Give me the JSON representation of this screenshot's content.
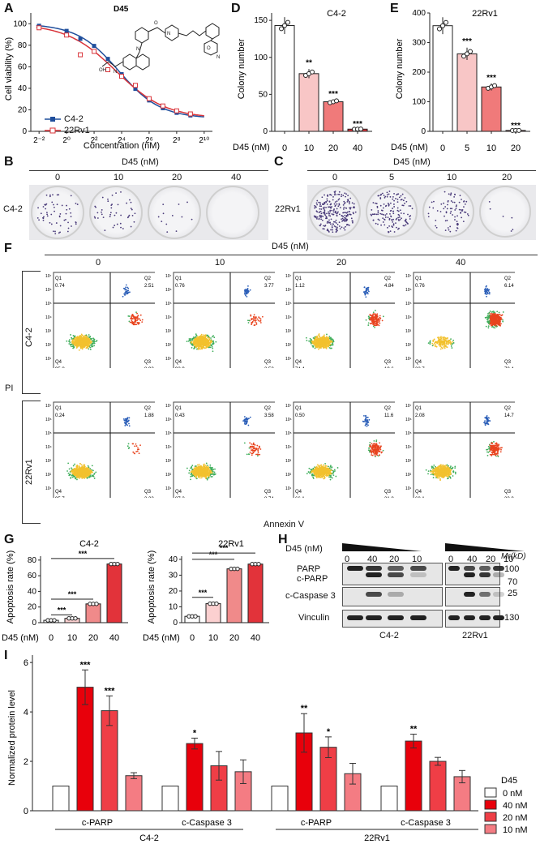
{
  "panels": {
    "A": "A",
    "B": "B",
    "C": "C",
    "D": "D",
    "E": "E",
    "F": "F",
    "G": "G",
    "H": "H",
    "I": "I"
  },
  "panelA": {
    "compound": "D45",
    "ylabel": "Cell viability (%)",
    "xlabel": "Concentration (nM)",
    "yticks": [
      "0",
      "20",
      "40",
      "60",
      "80",
      "100"
    ],
    "xticks": [
      "2⁻²",
      "2⁰",
      "2²",
      "2⁴",
      "2⁶",
      "2⁸",
      "2¹⁰"
    ],
    "legend": [
      "C4-2",
      "22Rv1"
    ],
    "colors": {
      "c42": "#1f4e9c",
      "rv1": "#d9343a"
    }
  },
  "panelD": {
    "title": "C4-2",
    "ylabel": "Colony number",
    "d45label": "D45 (nM)",
    "doses": [
      "0",
      "10",
      "20",
      "40"
    ],
    "values": [
      143,
      78,
      40,
      3
    ],
    "sig": [
      "",
      "**",
      "***",
      "***"
    ],
    "yticks": [
      "0",
      "50",
      "100",
      "150"
    ]
  },
  "panelE": {
    "title": "22Rv1",
    "ylabel": "Colony number",
    "d45label": "D45 (nM)",
    "doses": [
      "0",
      "5",
      "10",
      "20"
    ],
    "values": [
      357,
      262,
      150,
      3
    ],
    "sig": [
      "",
      "***",
      "***",
      "***"
    ],
    "yticks": [
      "0",
      "100",
      "200",
      "300",
      "400"
    ]
  },
  "panelB": {
    "header": "D45 (nM)",
    "doses": [
      "0",
      "10",
      "20",
      "40"
    ],
    "cell": "C4-2"
  },
  "panelC": {
    "header": "D45 (nM)",
    "doses": [
      "0",
      "5",
      "10",
      "20"
    ],
    "cell": "22Rv1"
  },
  "panelF": {
    "header": "D45 (nM)",
    "doses": [
      "0",
      "10",
      "20",
      "40"
    ],
    "rows": [
      "C4-2",
      "22Rv1"
    ],
    "ylabel": "PI",
    "xlabel": "Annexin V",
    "quads": [
      [
        [
          "0.74",
          "2.51",
          "8.92",
          "95.8"
        ],
        [
          "0.76",
          "3.77",
          "2.53",
          "92.9"
        ],
        [
          "1.12",
          "4.84",
          "19.6",
          "74.4"
        ],
        [
          "0.76",
          "6.14",
          "70.4",
          "22.7"
        ]
      ],
      [
        [
          "0.24",
          "1.88",
          "2.22",
          "95.7"
        ],
        [
          "0.43",
          "3.58",
          "8.74",
          "87.2"
        ],
        [
          "0.50",
          "11.6",
          "21.8",
          "66.1"
        ],
        [
          "2.08",
          "14.7",
          "23.0",
          "60.1"
        ]
      ]
    ],
    "qnames": [
      "Q1",
      "Q2",
      "Q3",
      "Q4"
    ]
  },
  "panelG": {
    "left": {
      "title": "C4-2",
      "ylabel": "Apoptosis rate (%)",
      "doses": [
        "0",
        "10",
        "20",
        "40"
      ],
      "values": [
        3,
        5.5,
        24,
        75
      ],
      "yticks": [
        "0",
        "20",
        "40",
        "60",
        "80"
      ]
    },
    "right": {
      "title": "22Rv1",
      "ylabel": "Apoptosis rate (%)",
      "doses": [
        "0",
        "10",
        "20",
        "40"
      ],
      "values": [
        4,
        12,
        34,
        37
      ],
      "yticks": [
        "0",
        "10",
        "20",
        "30",
        "40"
      ]
    },
    "d45label": "D45 (nM)",
    "sig": "***"
  },
  "panelH": {
    "d45label": "D45 (nM)",
    "lanes": [
      "0",
      "40",
      "20",
      "10",
      "0",
      "40",
      "20",
      "10"
    ],
    "mr": "Mr(kD)",
    "rows": [
      "PARP",
      "c-PARP",
      "c-Caspase 3",
      "Vinculin"
    ],
    "kd": [
      "100",
      "70",
      "25",
      "130"
    ],
    "cells": [
      "C4-2",
      "22Rv1"
    ]
  },
  "panelI": {
    "ylabel": "Normalized protein level",
    "yticks": [
      "0",
      "2",
      "4",
      "6"
    ],
    "legendTitle": "D45",
    "legend": [
      "0 nM",
      "40 nM",
      "20 nM",
      "10 nM"
    ],
    "groups": [
      {
        "label": "c-PARP",
        "values": [
          1,
          5.0,
          4.05,
          1.42
        ],
        "err": [
          0,
          0.7,
          0.6,
          0.12
        ],
        "sig": [
          "",
          "***",
          "***",
          ""
        ]
      },
      {
        "label": "c-Caspase 3",
        "values": [
          1,
          2.72,
          1.82,
          1.58
        ],
        "err": [
          0,
          0.22,
          0.58,
          0.48
        ],
        "sig": [
          "",
          "*",
          "",
          ""
        ]
      },
      {
        "label": "c-PARP",
        "values": [
          1,
          3.15,
          2.57,
          1.5
        ],
        "err": [
          0,
          0.78,
          0.42,
          0.42
        ],
        "sig": [
          "",
          "**",
          "*",
          ""
        ]
      },
      {
        "label": "c-Caspase 3",
        "values": [
          1,
          2.82,
          2.0,
          1.38
        ],
        "err": [
          0,
          0.28,
          0.16,
          0.25
        ],
        "sig": [
          "",
          "**",
          "",
          ""
        ]
      }
    ],
    "cells": [
      "C4-2",
      "22Rv1"
    ],
    "colors": [
      "#ffffff",
      "#e8000b",
      "#ef3e46",
      "#f47c83"
    ]
  }
}
